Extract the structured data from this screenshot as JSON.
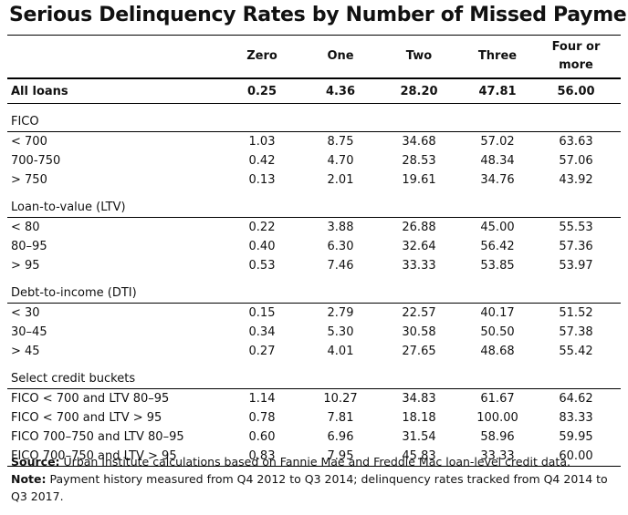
{
  "header": {
    "title": "Serious Delinquency Rates by Number of Missed Payments"
  },
  "table": {
    "columns": [
      "Zero",
      "One",
      "Two",
      "Three",
      "Four or more"
    ],
    "all_loans": {
      "label": "All loans",
      "values": [
        "0.25",
        "4.36",
        "28.20",
        "47.81",
        "56.00"
      ]
    },
    "groups": [
      {
        "title": "FICO",
        "rows": [
          {
            "label": "< 700",
            "values": [
              "1.03",
              "8.75",
              "34.68",
              "57.02",
              "63.63"
            ]
          },
          {
            "label": "700-750",
            "values": [
              "0.42",
              "4.70",
              "28.53",
              "48.34",
              "57.06"
            ]
          },
          {
            "label": "> 750",
            "values": [
              "0.13",
              "2.01",
              "19.61",
              "34.76",
              "43.92"
            ]
          }
        ]
      },
      {
        "title": "Loan-to-value (LTV)",
        "rows": [
          {
            "label": "< 80",
            "values": [
              "0.22",
              "3.88",
              "26.88",
              "45.00",
              "55.53"
            ]
          },
          {
            "label": "80–95",
            "values": [
              "0.40",
              "6.30",
              "32.64",
              "56.42",
              "57.36"
            ]
          },
          {
            "label": "> 95",
            "values": [
              "0.53",
              "7.46",
              "33.33",
              "53.85",
              "53.97"
            ]
          }
        ]
      },
      {
        "title": "Debt-to-income (DTI)",
        "rows": [
          {
            "label": "< 30",
            "values": [
              "0.15",
              "2.79",
              "22.57",
              "40.17",
              "51.52"
            ]
          },
          {
            "label": "30–45",
            "values": [
              "0.34",
              "5.30",
              "30.58",
              "50.50",
              "57.38"
            ]
          },
          {
            "label": "> 45",
            "values": [
              "0.27",
              "4.01",
              "27.65",
              "48.68",
              "55.42"
            ]
          }
        ]
      },
      {
        "title": "Select credit buckets",
        "rows": [
          {
            "label": "FICO < 700 and LTV 80–95",
            "values": [
              "1.14",
              "10.27",
              "34.83",
              "61.67",
              "64.62"
            ]
          },
          {
            "label": "FICO < 700 and LTV > 95",
            "values": [
              "0.78",
              "7.81",
              "18.18",
              "100.00",
              "83.33"
            ]
          },
          {
            "label": "FICO 700–750 and LTV 80–95",
            "values": [
              "0.60",
              "6.96",
              "31.54",
              "58.96",
              "59.95"
            ]
          },
          {
            "label": "FICO 700–750 and LTV > 95",
            "values": [
              "0.83",
              "7.95",
              "45.83",
              "33.33",
              "60.00"
            ]
          }
        ]
      }
    ]
  },
  "notes": {
    "source_label": "Source:",
    "source_text": "Urban Institute calculations based on Fannie Mae and Freddie Mac loan-level credit data.",
    "note_label": "Note:",
    "note_text": "Payment history measured from Q4 2012 to Q3 2014; delinquency rates tracked from Q4 2014 to Q3 2017."
  }
}
